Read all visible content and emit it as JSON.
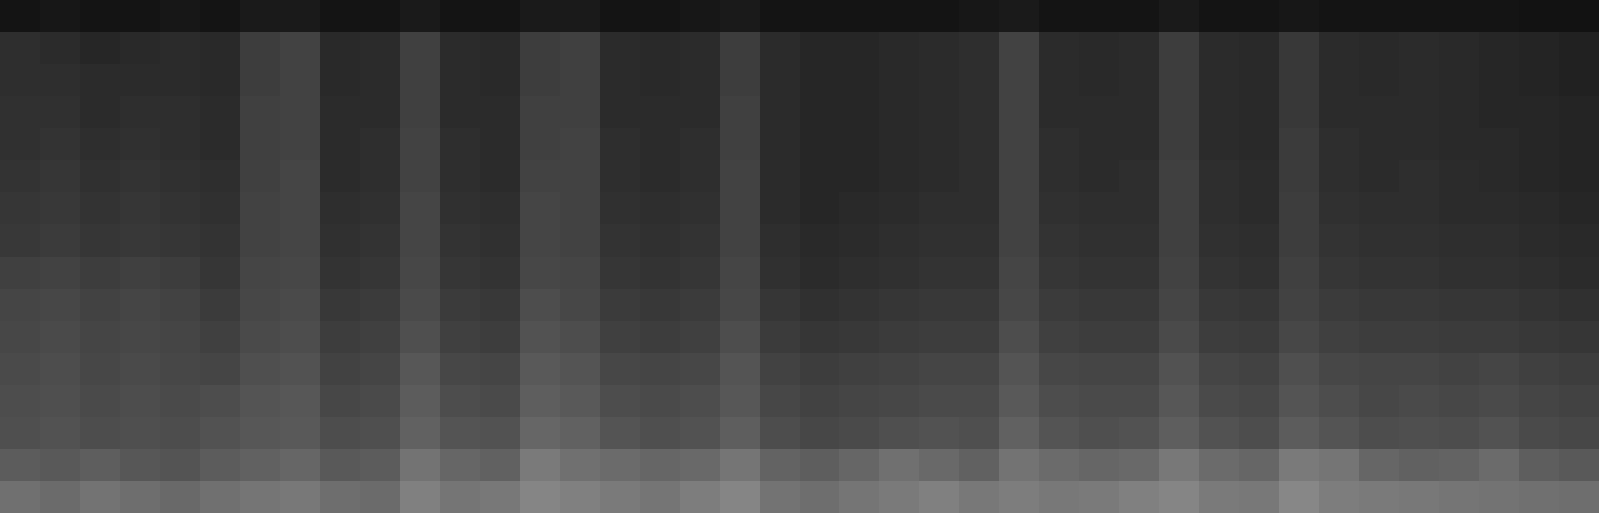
{
  "chart_data": {
    "type": "heatmap",
    "tick_labels": false,
    "colors": [
      "#000000",
      "#ffffff"
    ],
    "zlim": [
      0,
      1
    ],
    "cells": [
      [
        0.44,
        0.42,
        0.45,
        0.43,
        0.41,
        0.44,
        0.46,
        0.47,
        0.43,
        0.42,
        0.5,
        0.46,
        0.47,
        0.52,
        0.5,
        0.48,
        0.46,
        0.49,
        0.52,
        0.45,
        0.43,
        0.46,
        0.48,
        0.5,
        0.47,
        0.49,
        0.47,
        0.48,
        0.5,
        0.52,
        0.48,
        0.47,
        0.53,
        0.49,
        0.48,
        0.47,
        0.46,
        0.45,
        0.44,
        0.43
      ],
      [
        0.36,
        0.35,
        0.37,
        0.34,
        0.33,
        0.36,
        0.38,
        0.4,
        0.35,
        0.36,
        0.45,
        0.4,
        0.38,
        0.48,
        0.44,
        0.42,
        0.4,
        0.41,
        0.46,
        0.39,
        0.37,
        0.4,
        0.44,
        0.41,
        0.38,
        0.45,
        0.42,
        0.4,
        0.41,
        0.47,
        0.42,
        0.4,
        0.48,
        0.46,
        0.4,
        0.38,
        0.39,
        0.42,
        0.37,
        0.35
      ],
      [
        0.31,
        0.32,
        0.3,
        0.31,
        0.3,
        0.32,
        0.34,
        0.35,
        0.3,
        0.31,
        0.38,
        0.33,
        0.32,
        0.4,
        0.38,
        0.33,
        0.31,
        0.32,
        0.37,
        0.3,
        0.28,
        0.29,
        0.31,
        0.32,
        0.31,
        0.38,
        0.33,
        0.31,
        0.32,
        0.37,
        0.32,
        0.3,
        0.36,
        0.33,
        0.3,
        0.31,
        0.3,
        0.32,
        0.29,
        0.28
      ],
      [
        0.3,
        0.31,
        0.29,
        0.3,
        0.29,
        0.3,
        0.33,
        0.34,
        0.28,
        0.29,
        0.36,
        0.3,
        0.29,
        0.37,
        0.35,
        0.3,
        0.29,
        0.3,
        0.34,
        0.28,
        0.26,
        0.27,
        0.28,
        0.29,
        0.29,
        0.35,
        0.3,
        0.29,
        0.29,
        0.34,
        0.29,
        0.28,
        0.33,
        0.3,
        0.28,
        0.29,
        0.28,
        0.29,
        0.27,
        0.26
      ],
      [
        0.29,
        0.3,
        0.28,
        0.29,
        0.28,
        0.27,
        0.31,
        0.32,
        0.26,
        0.27,
        0.34,
        0.28,
        0.27,
        0.35,
        0.33,
        0.28,
        0.27,
        0.28,
        0.33,
        0.26,
        0.24,
        0.25,
        0.26,
        0.27,
        0.27,
        0.33,
        0.28,
        0.27,
        0.27,
        0.32,
        0.27,
        0.26,
        0.31,
        0.28,
        0.27,
        0.27,
        0.26,
        0.27,
        0.25,
        0.24
      ],
      [
        0.28,
        0.29,
        0.27,
        0.28,
        0.27,
        0.25,
        0.29,
        0.3,
        0.24,
        0.25,
        0.31,
        0.25,
        0.24,
        0.32,
        0.3,
        0.25,
        0.24,
        0.25,
        0.3,
        0.23,
        0.21,
        0.22,
        0.23,
        0.24,
        0.24,
        0.3,
        0.25,
        0.24,
        0.24,
        0.29,
        0.24,
        0.23,
        0.28,
        0.25,
        0.24,
        0.24,
        0.23,
        0.23,
        0.22,
        0.21
      ],
      [
        0.27,
        0.28,
        0.26,
        0.27,
        0.26,
        0.23,
        0.28,
        0.29,
        0.22,
        0.23,
        0.29,
        0.23,
        0.22,
        0.3,
        0.28,
        0.23,
        0.22,
        0.23,
        0.28,
        0.21,
        0.19,
        0.2,
        0.21,
        0.22,
        0.22,
        0.28,
        0.23,
        0.22,
        0.22,
        0.27,
        0.22,
        0.21,
        0.26,
        0.23,
        0.22,
        0.22,
        0.21,
        0.21,
        0.2,
        0.19
      ],
      [
        0.25,
        0.26,
        0.24,
        0.25,
        0.24,
        0.21,
        0.27,
        0.28,
        0.2,
        0.21,
        0.28,
        0.21,
        0.2,
        0.28,
        0.27,
        0.21,
        0.2,
        0.21,
        0.27,
        0.19,
        0.17,
        0.18,
        0.19,
        0.2,
        0.2,
        0.27,
        0.21,
        0.2,
        0.2,
        0.26,
        0.2,
        0.19,
        0.25,
        0.21,
        0.2,
        0.2,
        0.19,
        0.19,
        0.18,
        0.17
      ],
      [
        0.22,
        0.23,
        0.21,
        0.22,
        0.21,
        0.2,
        0.26,
        0.27,
        0.19,
        0.2,
        0.27,
        0.2,
        0.19,
        0.27,
        0.26,
        0.2,
        0.19,
        0.2,
        0.26,
        0.18,
        0.16,
        0.17,
        0.18,
        0.19,
        0.19,
        0.26,
        0.2,
        0.19,
        0.19,
        0.25,
        0.19,
        0.18,
        0.24,
        0.2,
        0.19,
        0.19,
        0.18,
        0.18,
        0.17,
        0.16
      ],
      [
        0.21,
        0.22,
        0.2,
        0.21,
        0.2,
        0.19,
        0.26,
        0.27,
        0.18,
        0.19,
        0.27,
        0.19,
        0.18,
        0.27,
        0.26,
        0.19,
        0.18,
        0.19,
        0.26,
        0.17,
        0.15,
        0.16,
        0.17,
        0.18,
        0.18,
        0.26,
        0.19,
        0.18,
        0.18,
        0.25,
        0.18,
        0.17,
        0.24,
        0.19,
        0.18,
        0.18,
        0.17,
        0.17,
        0.16,
        0.15
      ],
      [
        0.2,
        0.21,
        0.19,
        0.2,
        0.19,
        0.18,
        0.25,
        0.27,
        0.17,
        0.18,
        0.26,
        0.18,
        0.17,
        0.26,
        0.26,
        0.18,
        0.17,
        0.18,
        0.26,
        0.17,
        0.15,
        0.15,
        0.16,
        0.17,
        0.18,
        0.26,
        0.18,
        0.17,
        0.18,
        0.25,
        0.18,
        0.17,
        0.23,
        0.18,
        0.17,
        0.18,
        0.17,
        0.16,
        0.15,
        0.14
      ],
      [
        0.19,
        0.2,
        0.18,
        0.19,
        0.18,
        0.17,
        0.25,
        0.26,
        0.17,
        0.18,
        0.26,
        0.18,
        0.17,
        0.25,
        0.26,
        0.18,
        0.17,
        0.18,
        0.25,
        0.17,
        0.15,
        0.15,
        0.16,
        0.17,
        0.18,
        0.26,
        0.18,
        0.17,
        0.17,
        0.24,
        0.17,
        0.16,
        0.23,
        0.18,
        0.17,
        0.17,
        0.16,
        0.16,
        0.15,
        0.14
      ],
      [
        0.19,
        0.19,
        0.17,
        0.18,
        0.18,
        0.17,
        0.25,
        0.26,
        0.17,
        0.17,
        0.25,
        0.17,
        0.17,
        0.25,
        0.25,
        0.17,
        0.17,
        0.17,
        0.25,
        0.17,
        0.15,
        0.15,
        0.16,
        0.17,
        0.18,
        0.26,
        0.17,
        0.17,
        0.17,
        0.24,
        0.17,
        0.16,
        0.22,
        0.17,
        0.17,
        0.17,
        0.16,
        0.15,
        0.15,
        0.14
      ],
      [
        0.18,
        0.18,
        0.17,
        0.17,
        0.17,
        0.16,
        0.24,
        0.26,
        0.16,
        0.17,
        0.25,
        0.17,
        0.16,
        0.24,
        0.25,
        0.17,
        0.16,
        0.17,
        0.24,
        0.17,
        0.15,
        0.15,
        0.16,
        0.17,
        0.18,
        0.26,
        0.17,
        0.16,
        0.17,
        0.24,
        0.17,
        0.16,
        0.22,
        0.17,
        0.16,
        0.17,
        0.16,
        0.15,
        0.14,
        0.13
      ],
      [
        0.18,
        0.17,
        0.15,
        0.16,
        0.17,
        0.16,
        0.24,
        0.26,
        0.16,
        0.17,
        0.25,
        0.17,
        0.16,
        0.24,
        0.25,
        0.17,
        0.16,
        0.17,
        0.24,
        0.17,
        0.15,
        0.15,
        0.16,
        0.17,
        0.18,
        0.26,
        0.17,
        0.16,
        0.17,
        0.24,
        0.17,
        0.16,
        0.22,
        0.17,
        0.16,
        0.17,
        0.16,
        0.15,
        0.14,
        0.13
      ],
      [
        0.08,
        0.09,
        0.08,
        0.08,
        0.09,
        0.08,
        0.1,
        0.1,
        0.08,
        0.08,
        0.1,
        0.08,
        0.08,
        0.1,
        0.1,
        0.08,
        0.08,
        0.09,
        0.1,
        0.08,
        0.08,
        0.08,
        0.08,
        0.08,
        0.09,
        0.1,
        0.08,
        0.08,
        0.08,
        0.1,
        0.08,
        0.08,
        0.09,
        0.08,
        0.08,
        0.08,
        0.08,
        0.08,
        0.07,
        0.07
      ]
    ]
  }
}
